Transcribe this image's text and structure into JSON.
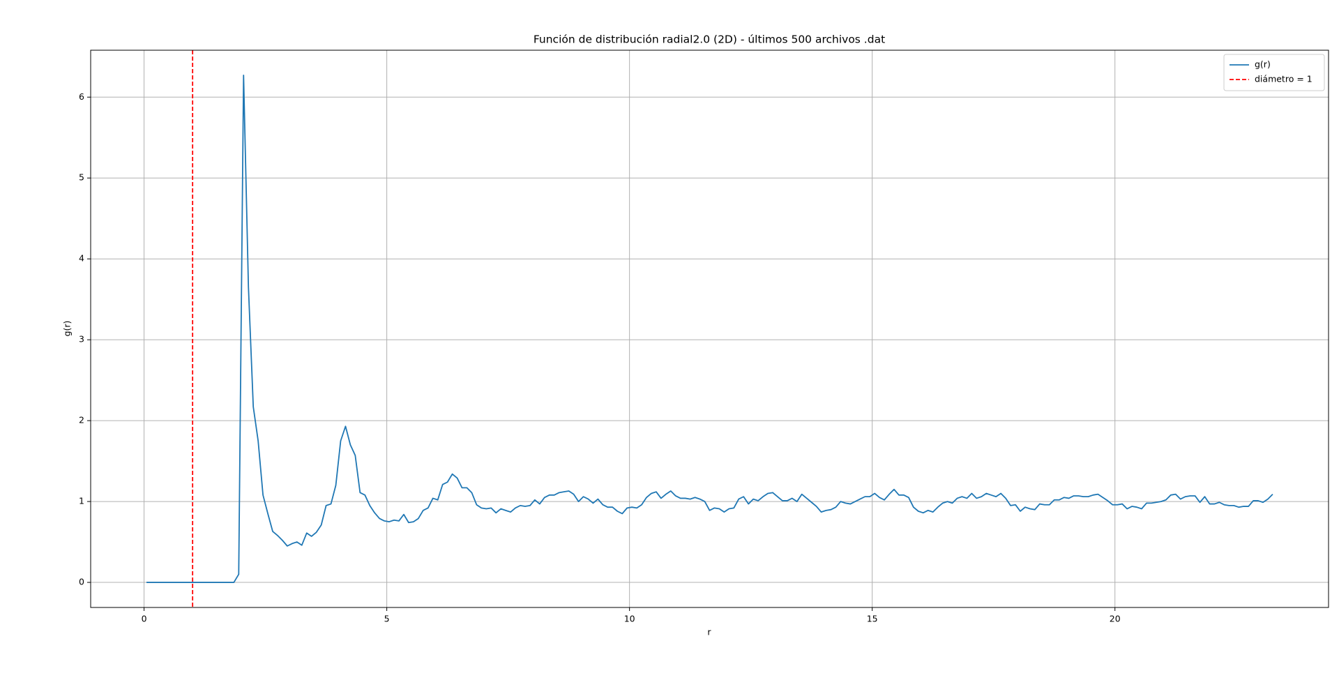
{
  "chart_data": {
    "type": "line",
    "title": "Función de distribución radial2.0 (2D) - últimos 500 archivos .dat",
    "x_label": "r",
    "y_label": "g(r)",
    "x": [
      0.05,
      0.15,
      0.25,
      0.35,
      0.45,
      0.55,
      0.65,
      0.75,
      0.85,
      0.95,
      1.05,
      1.15,
      1.25,
      1.35,
      1.45,
      1.55,
      1.65,
      1.75,
      1.85,
      1.95,
      2.05,
      2.15,
      2.25,
      2.35,
      2.45,
      2.55,
      2.65,
      2.75,
      2.85,
      2.95,
      3.05,
      3.15,
      3.25,
      3.35,
      3.45,
      3.55,
      3.65,
      3.75,
      3.85,
      3.95,
      4.05,
      4.15,
      4.25,
      4.35,
      4.45,
      4.55,
      4.65,
      4.75,
      4.85,
      4.95,
      5.05,
      5.15,
      5.25,
      5.35,
      5.45,
      5.55,
      5.65,
      5.75,
      5.85,
      5.95,
      6.05,
      6.15,
      6.25,
      6.35,
      6.45,
      6.55,
      6.65,
      6.75,
      6.85,
      6.95,
      7.05,
      7.15,
      7.25,
      7.35,
      7.45,
      7.55,
      7.65,
      7.75,
      7.85,
      7.95,
      8.05,
      8.15,
      8.25,
      8.35,
      8.45,
      8.55,
      8.65,
      8.75,
      8.85,
      8.95,
      9.05,
      9.15,
      9.25,
      9.35,
      9.45,
      9.55,
      9.65,
      9.75,
      9.85,
      9.95,
      10.05,
      10.15,
      10.25,
      10.35,
      10.45,
      10.55,
      10.65,
      10.75,
      10.85,
      10.95,
      11.05,
      11.15,
      11.25,
      11.35,
      11.45,
      11.55,
      11.65,
      11.75,
      11.85,
      11.95,
      12.05,
      12.15,
      12.25,
      12.35,
      12.45,
      12.55,
      12.65,
      12.75,
      12.85,
      12.95,
      13.05,
      13.15,
      13.25,
      13.35,
      13.45,
      13.55,
      13.65,
      13.75,
      13.85,
      13.95,
      14.05,
      14.15,
      14.25,
      14.35,
      14.45,
      14.55,
      14.65,
      14.75,
      14.85,
      14.95,
      15.05,
      15.15,
      15.25,
      15.35,
      15.45,
      15.55,
      15.65,
      15.75,
      15.85,
      15.95,
      16.05,
      16.15,
      16.25,
      16.35,
      16.45,
      16.55,
      16.65,
      16.75,
      16.85,
      16.95,
      17.05,
      17.15,
      17.25,
      17.35,
      17.45,
      17.55,
      17.65,
      17.75,
      17.85,
      17.95,
      18.05,
      18.15,
      18.25,
      18.35,
      18.45,
      18.55,
      18.65,
      18.75,
      18.85,
      18.95,
      19.05,
      19.15,
      19.25,
      19.35,
      19.45,
      19.55,
      19.65,
      19.75,
      19.85,
      19.95,
      20.05,
      20.15,
      20.25,
      20.35,
      20.45,
      20.55,
      20.65,
      20.75,
      20.85,
      20.95,
      21.05,
      21.15,
      21.25,
      21.35,
      21.45,
      21.55,
      21.65,
      21.75,
      21.85,
      21.95,
      22.05,
      22.15,
      22.25,
      22.35,
      22.45,
      22.55,
      22.65,
      22.75,
      22.85,
      22.95,
      23.05,
      23.15,
      23.25
    ],
    "series": [
      {
        "name": "g(r)",
        "color": "#1f77b4",
        "values": [
          0,
          0,
          0,
          0,
          0,
          0,
          0,
          0,
          0,
          0,
          0,
          0,
          0,
          0,
          0,
          0,
          0,
          0,
          0,
          0.1,
          6.27,
          3.65,
          2.17,
          1.75,
          1.08,
          0.85,
          0.63,
          0.58,
          0.52,
          0.45,
          0.48,
          0.5,
          0.46,
          0.61,
          0.57,
          0.62,
          0.71,
          0.95,
          0.97,
          1.2,
          1.75,
          1.93,
          1.7,
          1.57,
          1.11,
          1.08,
          0.95,
          0.86,
          0.79,
          0.76,
          0.75,
          0.77,
          0.76,
          0.84,
          0.74,
          0.75,
          0.79,
          0.89,
          0.92,
          1.04,
          1.02,
          1.21,
          1.24,
          1.34,
          1.29,
          1.17,
          1.17,
          1.11,
          0.96,
          0.92,
          0.91,
          0.92,
          0.86,
          0.91,
          0.89,
          0.87,
          0.92,
          0.95,
          0.94,
          0.95,
          1.02,
          0.97,
          1.05,
          1.08,
          1.08,
          1.11,
          1.12,
          1.13,
          1.09,
          1.0,
          1.06,
          1.03,
          0.98,
          1.03,
          0.96,
          0.93,
          0.93,
          0.88,
          0.85,
          0.92,
          0.93,
          0.92,
          0.96,
          1.05,
          1.1,
          1.12,
          1.04,
          1.09,
          1.13,
          1.07,
          1.04,
          1.04,
          1.03,
          1.05,
          1.03,
          1.0,
          0.89,
          0.92,
          0.91,
          0.87,
          0.91,
          0.92,
          1.03,
          1.06,
          0.97,
          1.03,
          1.01,
          1.06,
          1.1,
          1.11,
          1.06,
          1.01,
          1.01,
          1.04,
          1.0,
          1.09,
          1.04,
          0.99,
          0.94,
          0.87,
          0.89,
          0.9,
          0.93,
          1.0,
          0.98,
          0.97,
          1.0,
          1.03,
          1.06,
          1.06,
          1.1,
          1.05,
          1.02,
          1.09,
          1.15,
          1.08,
          1.08,
          1.05,
          0.93,
          0.88,
          0.86,
          0.89,
          0.87,
          0.93,
          0.98,
          1.0,
          0.98,
          1.04,
          1.06,
          1.04,
          1.1,
          1.04,
          1.06,
          1.1,
          1.08,
          1.06,
          1.1,
          1.04,
          0.95,
          0.96,
          0.88,
          0.93,
          0.91,
          0.9,
          0.97,
          0.96,
          0.96,
          1.02,
          1.02,
          1.05,
          1.04,
          1.07,
          1.07,
          1.06,
          1.06,
          1.08,
          1.09,
          1.05,
          1.01,
          0.96,
          0.96,
          0.97,
          0.91,
          0.94,
          0.93,
          0.91,
          0.98,
          0.98,
          0.99,
          1.0,
          1.02,
          1.08,
          1.09,
          1.03,
          1.06,
          1.07,
          1.07,
          0.99,
          1.06,
          0.97,
          0.97,
          0.99,
          0.96,
          0.95,
          0.95,
          0.93,
          0.94,
          0.94,
          1.01,
          1.01,
          0.99,
          1.03,
          1.09
        ]
      }
    ],
    "vlines": [
      {
        "name": "diámetro = 1",
        "color": "#ff0000",
        "value": 1,
        "style": "dashed"
      }
    ],
    "xlim": [
      -1.1,
      24.4
    ],
    "ylim": [
      -0.31,
      6.58
    ],
    "xticks": [
      0,
      5,
      10,
      15,
      20
    ],
    "yticks": [
      0,
      1,
      2,
      3,
      4,
      5,
      6
    ],
    "grid": true,
    "legend": "upper right"
  }
}
